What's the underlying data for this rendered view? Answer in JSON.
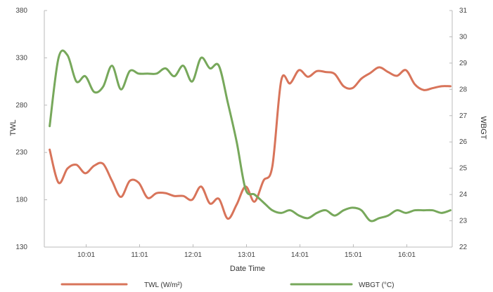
{
  "chart_data": {
    "type": "line",
    "xlabel": "Date Time",
    "ylabel_left": "TWL",
    "ylabel_right": "WBGT",
    "x_ticks": [
      "10:01",
      "11:01",
      "12:01",
      "13:01",
      "14:01",
      "15:01",
      "16:01"
    ],
    "ylim_left": [
      130,
      380
    ],
    "ylim_right": [
      22,
      31
    ],
    "yticks_left": [
      130,
      180,
      230,
      280,
      330,
      380
    ],
    "yticks_right": [
      22,
      23,
      24,
      25,
      26,
      27,
      28,
      29,
      30,
      31
    ],
    "series": [
      {
        "name": "TWL (W/m²)",
        "axis": "left",
        "color": "#d8745a",
        "x": [
          "09:20",
          "09:30",
          "09:40",
          "09:50",
          "10:00",
          "10:10",
          "10:20",
          "10:30",
          "10:40",
          "10:50",
          "11:00",
          "11:10",
          "11:20",
          "11:30",
          "11:40",
          "11:50",
          "12:00",
          "12:10",
          "12:20",
          "12:30",
          "12:40",
          "12:50",
          "13:00",
          "13:10",
          "13:20",
          "13:30",
          "13:40",
          "13:50",
          "14:00",
          "14:10",
          "14:20",
          "14:30",
          "14:40",
          "14:50",
          "15:00",
          "15:10",
          "15:20",
          "15:30",
          "15:40",
          "15:50",
          "16:00",
          "16:10",
          "16:20",
          "16:30",
          "16:40",
          "16:50"
        ],
        "values": [
          233,
          198,
          213,
          217,
          208,
          216,
          218,
          200,
          183,
          200,
          198,
          182,
          187,
          187,
          184,
          184,
          180,
          194,
          176,
          181,
          160,
          175,
          194,
          178,
          200,
          215,
          306,
          303,
          317,
          310,
          316,
          315,
          313,
          300,
          298,
          308,
          314,
          320,
          315,
          311,
          317,
          302,
          296,
          298,
          300,
          300
        ]
      },
      {
        "name": "WBGT (°C)",
        "axis": "right",
        "color": "#77a85b",
        "x": [
          "09:20",
          "09:30",
          "09:40",
          "09:50",
          "10:00",
          "10:10",
          "10:20",
          "10:30",
          "10:40",
          "10:50",
          "11:00",
          "11:10",
          "11:20",
          "11:30",
          "11:40",
          "11:50",
          "12:00",
          "12:10",
          "12:20",
          "12:30",
          "12:40",
          "12:50",
          "13:00",
          "13:10",
          "13:20",
          "13:30",
          "13:40",
          "13:50",
          "14:00",
          "14:10",
          "14:20",
          "14:30",
          "14:40",
          "14:50",
          "15:00",
          "15:10",
          "15:20",
          "15:30",
          "15:40",
          "15:50",
          "16:00",
          "16:10",
          "16:20",
          "16:30",
          "16:40",
          "16:50"
        ],
        "values": [
          26.6,
          29.2,
          29.3,
          28.3,
          28.5,
          27.9,
          28.1,
          28.9,
          28.0,
          28.7,
          28.6,
          28.6,
          28.6,
          28.8,
          28.5,
          28.9,
          28.3,
          29.2,
          28.8,
          28.9,
          27.5,
          26.0,
          24.2,
          24.0,
          23.7,
          23.4,
          23.3,
          23.4,
          23.2,
          23.1,
          23.3,
          23.4,
          23.2,
          23.4,
          23.5,
          23.4,
          23.0,
          23.1,
          23.2,
          23.4,
          23.3,
          23.4,
          23.4,
          23.4,
          23.3,
          23.4
        ]
      }
    ],
    "grid": false,
    "legend_position": "bottom"
  }
}
